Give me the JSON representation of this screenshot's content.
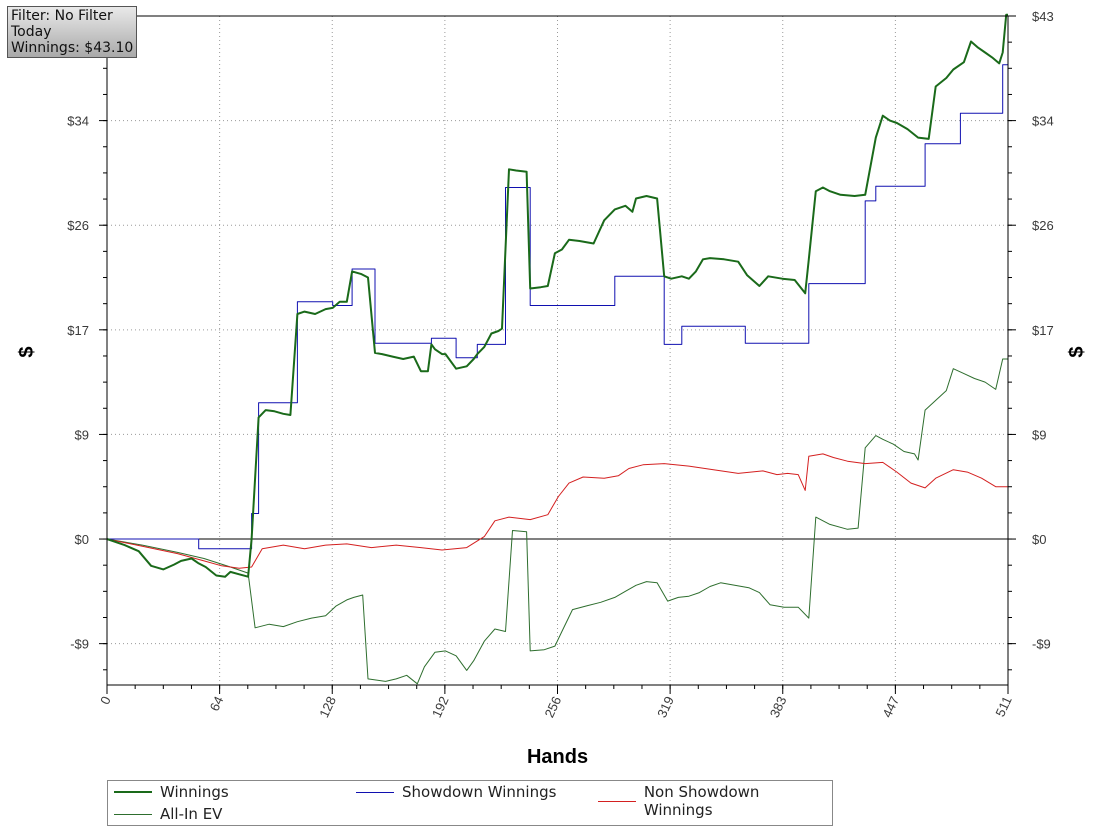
{
  "info_box": {
    "filter": "Filter: No Filter",
    "period": "Today",
    "winnings": "Winnings: $43.10"
  },
  "colors": {
    "winnings": "#1a6a1a",
    "showdown": "#1010b0",
    "non_showdown": "#d42020",
    "allin_ev": "#2e6e2e"
  },
  "legend": [
    {
      "label": "Winnings",
      "color": "#1a6a1a",
      "width": 2
    },
    {
      "label": "Showdown Winnings",
      "color": "#1010b0",
      "width": 1
    },
    {
      "label": "Non Showdown Winnings",
      "color": "#d42020",
      "width": 1
    },
    {
      "label": "All-In EV",
      "color": "#2e6e2e",
      "width": 1
    }
  ],
  "chart_data": {
    "type": "line",
    "xlabel": "Hands",
    "ylabel": "$",
    "xlim": [
      0,
      511
    ],
    "ylim": [
      -12,
      43
    ],
    "grid": true,
    "legend_position": "bottom",
    "x_ticks": [
      "0",
      "64",
      "128",
      "192",
      "256",
      "319",
      "383",
      "447",
      "511"
    ],
    "y_ticks": [
      {
        "value": 43,
        "label": "$43"
      },
      {
        "value": 34.4,
        "label": "$34"
      },
      {
        "value": 25.8,
        "label": "$26"
      },
      {
        "value": 17.2,
        "label": "$17"
      },
      {
        "value": 8.6,
        "label": "$9"
      },
      {
        "value": 0,
        "label": "$0"
      },
      {
        "value": -8.6,
        "label": "-$9"
      }
    ],
    "series": [
      {
        "name": "Winnings",
        "color": "#1a6a1a",
        "width": 2,
        "points": [
          [
            0,
            0
          ],
          [
            10,
            -0.5
          ],
          [
            18,
            -1
          ],
          [
            25,
            -2.2
          ],
          [
            32,
            -2.5
          ],
          [
            38,
            -2.1
          ],
          [
            42,
            -1.8
          ],
          [
            48,
            -1.6
          ],
          [
            52,
            -2.0
          ],
          [
            56,
            -2.3
          ],
          [
            62,
            -3.0
          ],
          [
            67,
            -3.1
          ],
          [
            70,
            -2.7
          ],
          [
            75,
            -2.9
          ],
          [
            80,
            -3.1
          ],
          [
            82,
            0
          ],
          [
            86,
            10
          ],
          [
            90,
            10.6
          ],
          [
            95,
            10.5
          ],
          [
            100,
            10.3
          ],
          [
            104,
            10.2
          ],
          [
            108,
            18.5
          ],
          [
            112,
            18.7
          ],
          [
            118,
            18.5
          ],
          [
            124,
            18.9
          ],
          [
            128,
            19.0
          ],
          [
            132,
            19.5
          ],
          [
            136,
            19.5
          ],
          [
            139,
            22
          ],
          [
            144,
            21.8
          ],
          [
            148,
            21.5
          ],
          [
            152,
            15.3
          ],
          [
            156,
            15.2
          ],
          [
            162,
            15.0
          ],
          [
            168,
            14.8
          ],
          [
            174,
            15.0
          ],
          [
            178,
            13.8
          ],
          [
            182,
            13.8
          ],
          [
            184,
            16.0
          ],
          [
            186,
            15.6
          ],
          [
            190,
            15.2
          ],
          [
            192,
            15.2
          ],
          [
            198,
            14.0
          ],
          [
            204,
            14.2
          ],
          [
            208,
            14.8
          ],
          [
            210,
            15.2
          ],
          [
            214,
            15.8
          ],
          [
            218,
            16.9
          ],
          [
            222,
            17.1
          ],
          [
            224,
            17.3
          ],
          [
            228,
            30.4
          ],
          [
            232,
            30.3
          ],
          [
            238,
            30.2
          ],
          [
            240,
            20.6
          ],
          [
            246,
            20.7
          ],
          [
            250,
            20.8
          ],
          [
            254,
            23.5
          ],
          [
            258,
            23.8
          ],
          [
            262,
            24.6
          ],
          [
            268,
            24.5
          ],
          [
            276,
            24.3
          ],
          [
            282,
            26.2
          ],
          [
            288,
            27.1
          ],
          [
            294,
            27.4
          ],
          [
            298,
            26.9
          ],
          [
            300,
            28.0
          ],
          [
            306,
            28.2
          ],
          [
            312,
            28.0
          ],
          [
            316,
            21.6
          ],
          [
            320,
            21.4
          ],
          [
            326,
            21.6
          ],
          [
            330,
            21.4
          ],
          [
            334,
            22.0
          ],
          [
            338,
            23.0
          ],
          [
            342,
            23.1
          ],
          [
            350,
            23.0
          ],
          [
            358,
            22.8
          ],
          [
            363,
            21.7
          ],
          [
            370,
            20.8
          ],
          [
            375,
            21.6
          ],
          [
            383,
            21.4
          ],
          [
            390,
            21.3
          ],
          [
            396,
            20.2
          ],
          [
            398,
            23
          ],
          [
            402,
            28.6
          ],
          [
            406,
            28.9
          ],
          [
            410,
            28.6
          ],
          [
            416,
            28.3
          ],
          [
            424,
            28.2
          ],
          [
            430,
            28.3
          ],
          [
            436,
            33.0
          ],
          [
            440,
            34.8
          ],
          [
            444,
            34.4
          ],
          [
            448,
            34.2
          ],
          [
            454,
            33.7
          ],
          [
            460,
            33.0
          ],
          [
            466,
            32.9
          ],
          [
            470,
            37.2
          ],
          [
            476,
            37.9
          ],
          [
            480,
            38.6
          ],
          [
            486,
            39.2
          ],
          [
            490,
            40.9
          ],
          [
            494,
            40.4
          ],
          [
            498,
            40.0
          ],
          [
            502,
            39.6
          ],
          [
            506,
            39.1
          ],
          [
            508,
            40.0
          ],
          [
            510,
            43.1
          ],
          [
            511,
            43.1
          ]
        ]
      },
      {
        "name": "Showdown Winnings",
        "color": "#1010b0",
        "width": 1,
        "points": [
          [
            0,
            0
          ],
          [
            52,
            0
          ],
          [
            52,
            -0.8
          ],
          [
            82,
            -0.8
          ],
          [
            82,
            2.1
          ],
          [
            86,
            2.1
          ],
          [
            86,
            11.2
          ],
          [
            108,
            11.2
          ],
          [
            108,
            19.5
          ],
          [
            128,
            19.5
          ],
          [
            128,
            19.2
          ],
          [
            139,
            19.2
          ],
          [
            139,
            22.2
          ],
          [
            152,
            22.2
          ],
          [
            152,
            16.1
          ],
          [
            184,
            16.1
          ],
          [
            184,
            16.5
          ],
          [
            198,
            16.5
          ],
          [
            198,
            14.9
          ],
          [
            210,
            14.9
          ],
          [
            210,
            16.0
          ],
          [
            226,
            16.0
          ],
          [
            226,
            28.9
          ],
          [
            240,
            28.9
          ],
          [
            240,
            19.2
          ],
          [
            288,
            19.2
          ],
          [
            288,
            21.6
          ],
          [
            316,
            21.6
          ],
          [
            316,
            16.0
          ],
          [
            326,
            16.0
          ],
          [
            326,
            17.5
          ],
          [
            362,
            17.5
          ],
          [
            362,
            16.1
          ],
          [
            398,
            16.1
          ],
          [
            398,
            21.0
          ],
          [
            430,
            21.0
          ],
          [
            430,
            27.8
          ],
          [
            436,
            27.8
          ],
          [
            436,
            29.0
          ],
          [
            464,
            29.0
          ],
          [
            464,
            32.5
          ],
          [
            484,
            32.5
          ],
          [
            484,
            35.0
          ],
          [
            508,
            35.0
          ],
          [
            508,
            39.0
          ],
          [
            511,
            39.0
          ]
        ]
      },
      {
        "name": "Non Showdown Winnings",
        "color": "#d42020",
        "width": 1,
        "points": [
          [
            0,
            0
          ],
          [
            20,
            -0.6
          ],
          [
            40,
            -1.2
          ],
          [
            55,
            -1.8
          ],
          [
            65,
            -2.2
          ],
          [
            75,
            -2.4
          ],
          [
            82,
            -2.3
          ],
          [
            88,
            -0.8
          ],
          [
            100,
            -0.5
          ],
          [
            112,
            -0.8
          ],
          [
            124,
            -0.5
          ],
          [
            136,
            -0.4
          ],
          [
            150,
            -0.7
          ],
          [
            164,
            -0.5
          ],
          [
            178,
            -0.7
          ],
          [
            190,
            -0.9
          ],
          [
            204,
            -0.7
          ],
          [
            214,
            0.2
          ],
          [
            220,
            1.5
          ],
          [
            228,
            1.8
          ],
          [
            240,
            1.6
          ],
          [
            250,
            2.0
          ],
          [
            256,
            3.5
          ],
          [
            262,
            4.6
          ],
          [
            270,
            5.1
          ],
          [
            282,
            5.0
          ],
          [
            290,
            5.2
          ],
          [
            296,
            5.8
          ],
          [
            304,
            6.1
          ],
          [
            316,
            6.2
          ],
          [
            330,
            6.0
          ],
          [
            344,
            5.7
          ],
          [
            358,
            5.4
          ],
          [
            372,
            5.6
          ],
          [
            380,
            5.3
          ],
          [
            386,
            5.4
          ],
          [
            392,
            5.3
          ],
          [
            396,
            4.0
          ],
          [
            398,
            6.8
          ],
          [
            406,
            7.0
          ],
          [
            412,
            6.7
          ],
          [
            420,
            6.4
          ],
          [
            430,
            6.2
          ],
          [
            440,
            6.3
          ],
          [
            448,
            5.5
          ],
          [
            456,
            4.6
          ],
          [
            464,
            4.2
          ],
          [
            470,
            5.0
          ],
          [
            480,
            5.7
          ],
          [
            488,
            5.5
          ],
          [
            496,
            5.0
          ],
          [
            504,
            4.3
          ],
          [
            511,
            4.3
          ]
        ]
      },
      {
        "name": "All-In EV",
        "color": "#2e6e2e",
        "width": 1,
        "points": [
          [
            0,
            0
          ],
          [
            20,
            -0.5
          ],
          [
            40,
            -1.1
          ],
          [
            55,
            -1.6
          ],
          [
            70,
            -2.3
          ],
          [
            80,
            -2.8
          ],
          [
            84,
            -7.3
          ],
          [
            92,
            -7.0
          ],
          [
            100,
            -7.2
          ],
          [
            108,
            -6.8
          ],
          [
            116,
            -6.5
          ],
          [
            124,
            -6.3
          ],
          [
            130,
            -5.5
          ],
          [
            136,
            -5.0
          ],
          [
            140,
            -4.8
          ],
          [
            145,
            -4.6
          ],
          [
            148,
            -11.5
          ],
          [
            158,
            -11.7
          ],
          [
            164,
            -11.5
          ],
          [
            170,
            -11.2
          ],
          [
            176,
            -11.9
          ],
          [
            180,
            -10.5
          ],
          [
            186,
            -9.3
          ],
          [
            192,
            -9.2
          ],
          [
            198,
            -9.6
          ],
          [
            204,
            -10.8
          ],
          [
            208,
            -10.0
          ],
          [
            214,
            -8.4
          ],
          [
            220,
            -7.4
          ],
          [
            226,
            -7.6
          ],
          [
            230,
            0.7
          ],
          [
            238,
            0.6
          ],
          [
            240,
            -9.2
          ],
          [
            248,
            -9.1
          ],
          [
            254,
            -8.8
          ],
          [
            258,
            -7.6
          ],
          [
            264,
            -5.8
          ],
          [
            272,
            -5.5
          ],
          [
            280,
            -5.2
          ],
          [
            288,
            -4.8
          ],
          [
            294,
            -4.3
          ],
          [
            300,
            -3.8
          ],
          [
            306,
            -3.5
          ],
          [
            312,
            -3.6
          ],
          [
            318,
            -5.1
          ],
          [
            324,
            -4.8
          ],
          [
            330,
            -4.7
          ],
          [
            336,
            -4.4
          ],
          [
            342,
            -3.9
          ],
          [
            348,
            -3.6
          ],
          [
            356,
            -3.8
          ],
          [
            364,
            -4.0
          ],
          [
            370,
            -4.4
          ],
          [
            376,
            -5.4
          ],
          [
            384,
            -5.6
          ],
          [
            392,
            -5.6
          ],
          [
            398,
            -6.5
          ],
          [
            402,
            1.8
          ],
          [
            410,
            1.2
          ],
          [
            420,
            0.8
          ],
          [
            426,
            0.9
          ],
          [
            430,
            7.5
          ],
          [
            436,
            8.5
          ],
          [
            440,
            8.2
          ],
          [
            446,
            7.8
          ],
          [
            452,
            7.2
          ],
          [
            458,
            7.0
          ],
          [
            460,
            6.5
          ],
          [
            464,
            10.6
          ],
          [
            470,
            11.4
          ],
          [
            476,
            12.2
          ],
          [
            480,
            14.0
          ],
          [
            486,
            13.6
          ],
          [
            492,
            13.2
          ],
          [
            498,
            12.9
          ],
          [
            504,
            12.3
          ],
          [
            508,
            14.8
          ],
          [
            511,
            14.8
          ]
        ]
      }
    ]
  }
}
